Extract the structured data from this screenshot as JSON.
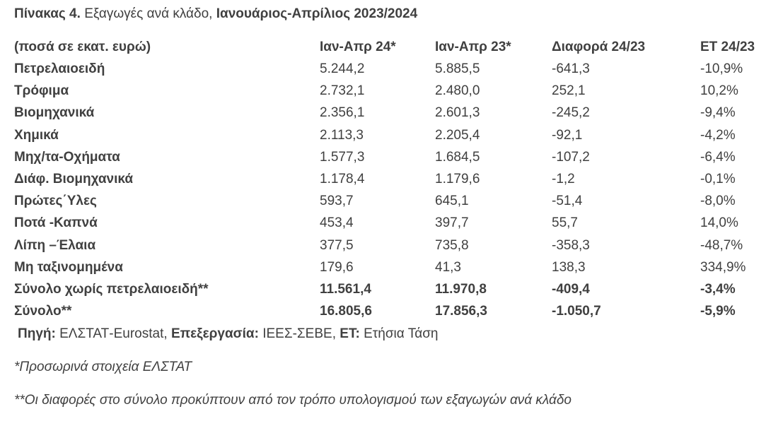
{
  "header": {
    "title_parts": [
      "Πίνακας 4.",
      "Εξαγωγές ανά κλάδο,",
      "Ιανουάριος-Απρίλιος 2023/2024"
    ]
  },
  "table": {
    "columns": [
      "(ποσά σε εκατ. ευρώ)",
      "Ιαν-Απρ 24*",
      "Ιαν-Απρ 23*",
      "Διαφορά 24/23",
      "ΕΤ 24/23"
    ],
    "rows": [
      [
        "Πετρελαιοειδή",
        "5.244,2",
        "5.885,5",
        "-641,3",
        "-10,9%"
      ],
      [
        "Τρόφιμα",
        "2.732,1",
        "2.480,0",
        "252,1",
        "10,2%"
      ],
      [
        "Βιομηχανικά",
        "2.356,1",
        "2.601,3",
        "-245,2",
        "-9,4%"
      ],
      [
        "Χημικά",
        "2.113,3",
        "2.205,4",
        "-92,1",
        "-4,2%"
      ],
      [
        "Μηχ/τα-Οχήματα",
        "1.577,3",
        "1.684,5",
        "-107,2",
        "-6,4%"
      ],
      [
        "Διάφ. Βιομηχανικά",
        "1.178,4",
        "1.179,6",
        "-1,2",
        "-0,1%"
      ],
      [
        "Πρώτες΄Υλες",
        "593,7",
        "645,1",
        "-51,4",
        "-8,0%"
      ],
      [
        "Ποτά -Καπνά",
        "453,4",
        "397,7",
        "55,7",
        "14,0%"
      ],
      [
        "Λίπη –Έλαια",
        "377,5",
        "735,8",
        "-358,3",
        "-48,7%"
      ],
      [
        "Μη ταξινομημένα",
        "179,6",
        "41,3",
        "138,3",
        "334,9%"
      ],
      [
        "Σύνολο χωρίς πετρελαιοειδή**",
        "11.561,4",
        "11.970,8",
        "-409,4",
        "-3,4%"
      ],
      [
        "Σύνολο**",
        "16.805,6",
        "17.856,3",
        "-1.050,7",
        "-5,9%"
      ]
    ]
  },
  "source_parts": [
    "Πηγή:",
    "ΕΛΣΤΑΤ-Eurostat,",
    "Επεξεργασία:",
    "ΙΕΕΣ-ΣΕΒΕ,",
    "ΕΤ:",
    "Ετήσια Τάση"
  ],
  "notes": [
    "*Προσωρινά στοιχεία ΕΛΣΤΑΤ",
    "**Οι διαφορές στο σύνολο προκύπτουν από τον τρόπο υπολογισμού των εξαγωγών ανά κλάδο"
  ]
}
